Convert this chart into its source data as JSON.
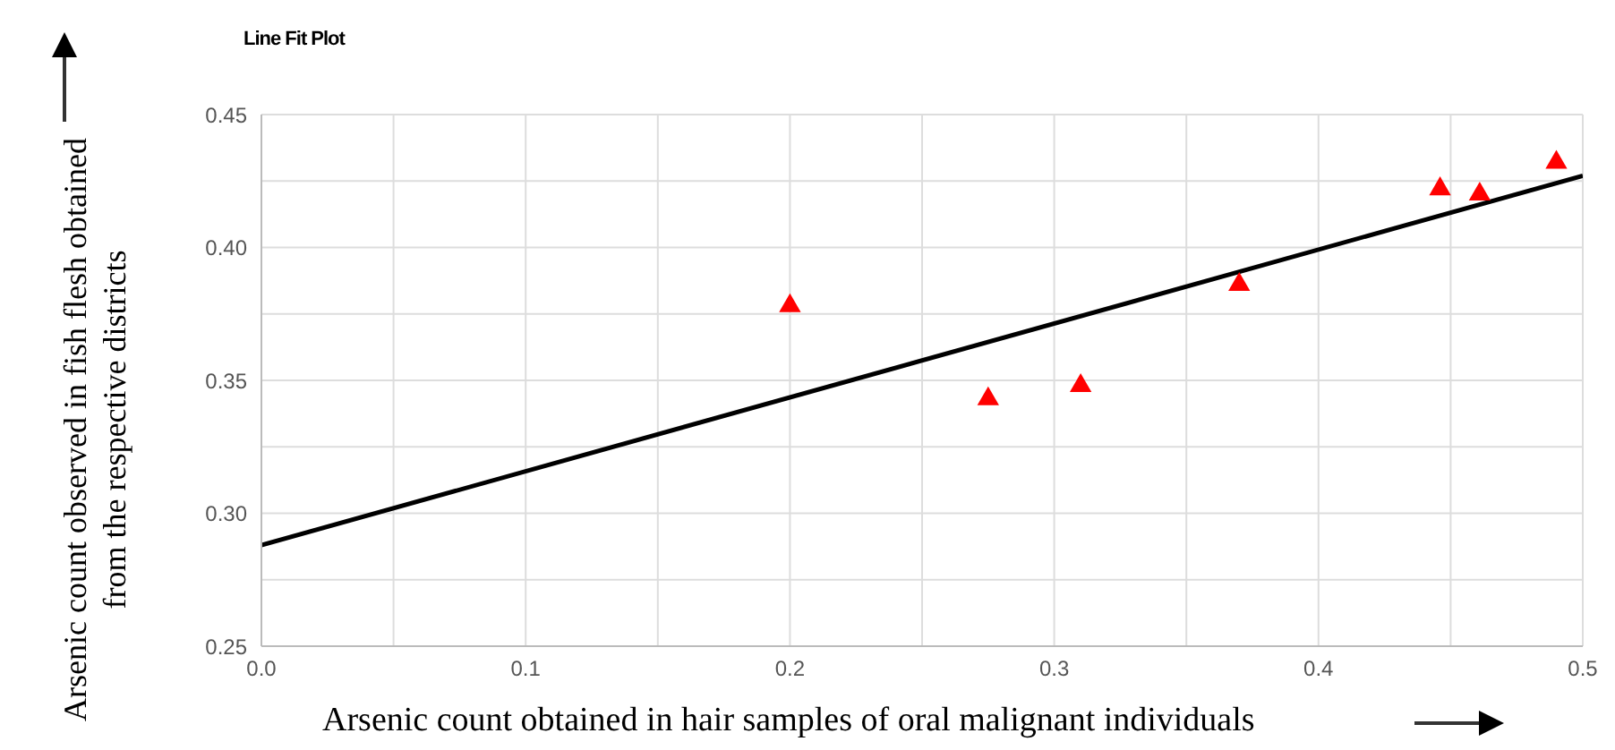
{
  "chart_data": {
    "type": "scatter",
    "title": "Line Fit Plot",
    "xlabel": "Arsenic count obtained in hair samples of oral malignant individuals",
    "ylabel": "Arsenic count observed in fish flesh obtained from the respective districts",
    "xlim": [
      0,
      0.5
    ],
    "xticks": [
      {
        "value": 0,
        "label": "0.0"
      },
      {
        "value": 0.05,
        "label": null
      },
      0.1,
      {
        "value": 0.15,
        "label": null
      },
      0.2,
      {
        "value": 0.25,
        "label": null
      },
      0.3,
      {
        "value": 0.35,
        "label": null
      },
      0.4,
      {
        "value": 0.45,
        "label": null
      },
      0.5
    ],
    "ylim": [
      0.25,
      0.45
    ],
    "yticks": [
      0.25,
      {
        "value": 0.275,
        "label": null
      },
      {
        "value": 0.3,
        "label": "0.30"
      },
      {
        "value": 0.325,
        "label": null
      },
      0.35,
      {
        "value": 0.375,
        "label": null
      },
      {
        "value": 0.4,
        "label": "0.40"
      },
      {
        "value": 0.425,
        "label": null
      },
      0.45
    ],
    "grid": true,
    "series": [
      {
        "type": "scatter",
        "color": "#ff0000",
        "marker": "triangle",
        "x": [
          0.2,
          0.275,
          0.31,
          0.37,
          0.446,
          0.461,
          0.49
        ],
        "values": [
          0.378,
          0.343,
          0.348,
          0.386,
          0.422,
          0.42,
          0.432
        ]
      },
      {
        "type": "line",
        "color": "#000000",
        "marker": "none",
        "line_style": "solid",
        "x": [
          0,
          0.5
        ],
        "values": [
          0.288,
          0.427
        ]
      }
    ]
  }
}
